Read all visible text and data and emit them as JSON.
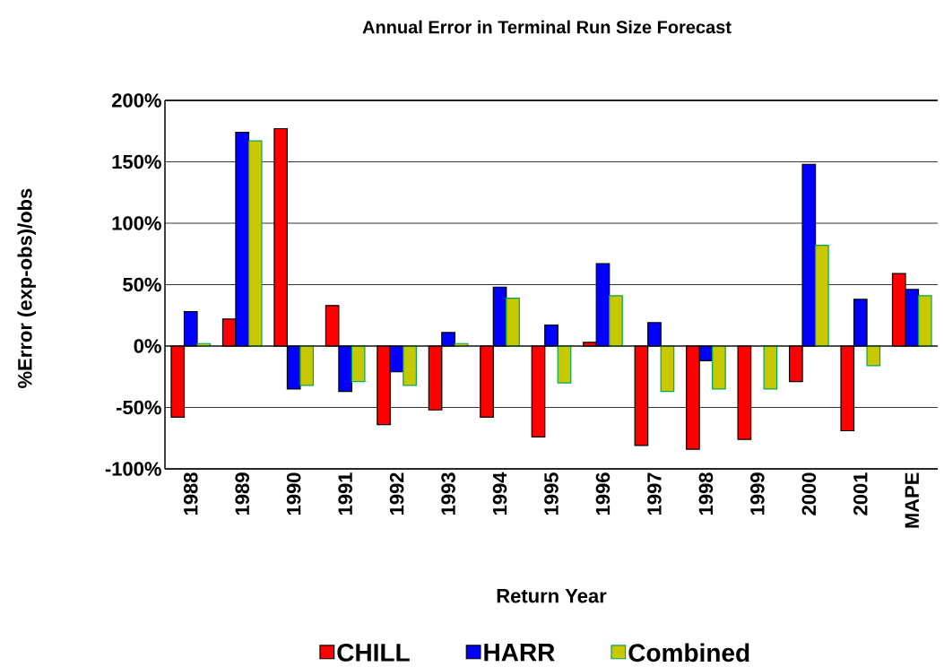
{
  "chart_data": {
    "type": "bar",
    "title": "Annual Error in Terminal Run Size Forecast",
    "xlabel": "Return Year",
    "ylabel": "%Error (exp-obs)/obs",
    "categories": [
      "1988",
      "1989",
      "1990",
      "1991",
      "1992",
      "1993",
      "1994",
      "1995",
      "1996",
      "1997",
      "1998",
      "1999",
      "2000",
      "2001",
      "MAPE"
    ],
    "series": [
      {
        "name": "CHILL",
        "color": "#ff0000",
        "values": [
          -58,
          22,
          177,
          33,
          -64,
          -52,
          -58,
          -74,
          3,
          -81,
          -84,
          -76,
          -29,
          -69,
          59
        ]
      },
      {
        "name": "HARR",
        "color": "#0000ff",
        "values": [
          28,
          174,
          -35,
          -37,
          -21,
          11,
          48,
          17,
          67,
          19,
          -12,
          null,
          148,
          38,
          46
        ]
      },
      {
        "name": "Combined",
        "color": "#c8c800",
        "values": [
          2,
          167,
          -32,
          -29,
          -32,
          2,
          39,
          -30,
          41,
          -37,
          -35,
          -35,
          82,
          -16,
          41
        ]
      }
    ],
    "ylim": [
      -100,
      200
    ],
    "yticks": [
      {
        "value": -100,
        "label": "-100%"
      },
      {
        "value": -50,
        "label": "-50%"
      },
      {
        "value": 0,
        "label": "0%"
      },
      {
        "value": 50,
        "label": "50%"
      },
      {
        "value": 100,
        "label": "100%"
      },
      {
        "value": 150,
        "label": "150%"
      },
      {
        "value": 200,
        "label": "200%"
      }
    ],
    "grid": "y",
    "legend": "bottom"
  }
}
